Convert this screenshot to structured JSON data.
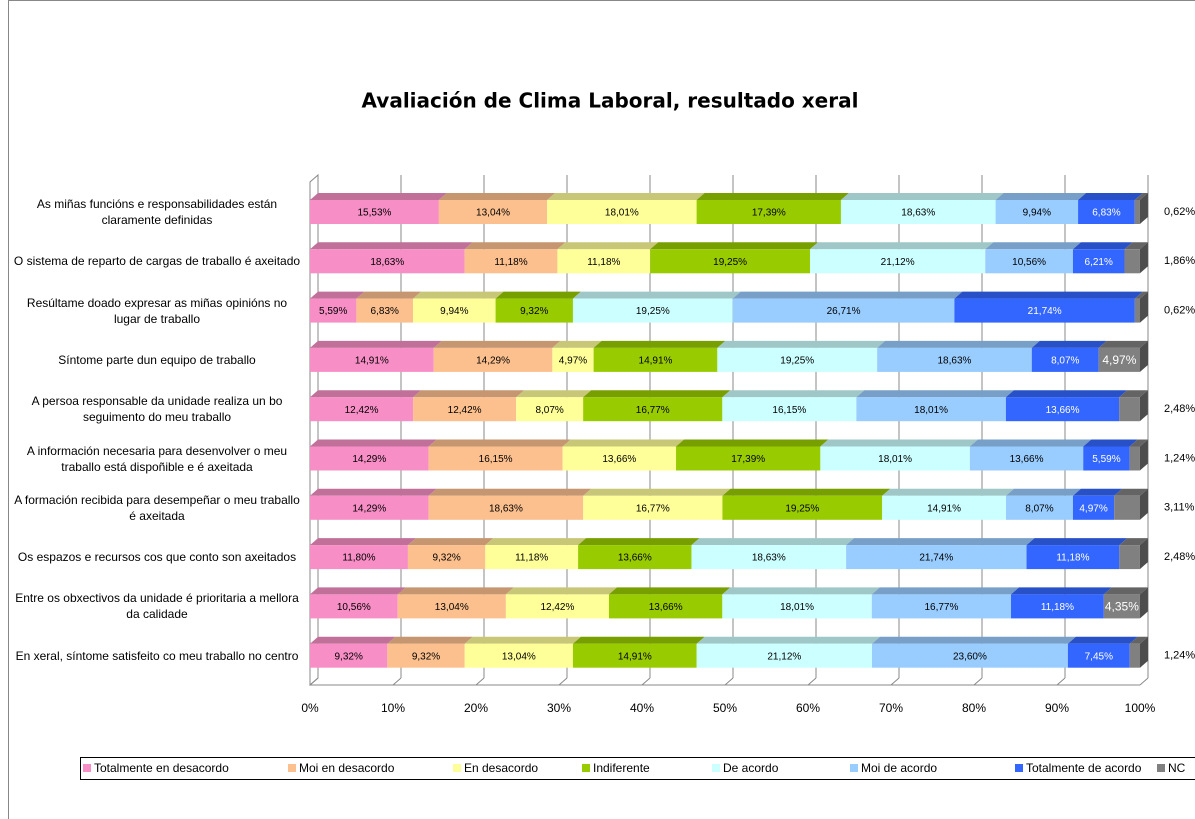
{
  "chart_data": {
    "type": "stacked_barh_100",
    "title": "Avaliación de Clima Laboral, resultado xeral",
    "categories": [
      "As miñas funcións e responsabilidades están claramente definidas",
      "O sistema de reparto de cargas de traballo é axeitado",
      "Resúltame doado expresar as miñas opinións no lugar de traballo",
      "Síntome parte dun equipo de traballo",
      "A persoa responsable da unidade realiza un bo seguimento do meu traballo",
      "A información necesaria para desenvolver o meu traballo está dispoñible e é axeitada",
      "A formación recibida para desempeñar o meu traballo é axeitada",
      "Os espazos e recursos cos que conto son axeitados",
      "Entre os obxectivos da unidade é prioritaria a mellora da calidade",
      "En xeral, síntome satisfeito co meu traballo no centro"
    ],
    "series": [
      {
        "name": "Totalmente en desacordo",
        "color": "#f78fc6",
        "values": [
          15.53,
          18.63,
          5.59,
          14.91,
          12.42,
          14.29,
          14.29,
          11.8,
          10.56,
          9.32
        ],
        "value_labels": [
          "15,53%",
          "18,63%",
          "5,59%",
          "14,91%",
          "12,42%",
          "14,29%",
          "14,29%",
          "11,80%",
          "10,56%",
          "9,32%"
        ]
      },
      {
        "name": "Moi en desacordo",
        "color": "#fcc08e",
        "values": [
          13.04,
          11.18,
          6.83,
          14.29,
          12.42,
          16.15,
          18.63,
          9.32,
          13.04,
          9.32
        ],
        "value_labels": [
          "13,04%",
          "11,18%",
          "6,83%",
          "14,29%",
          "12,42%",
          "16,15%",
          "18,63%",
          "9,32%",
          "13,04%",
          "9,32%"
        ]
      },
      {
        "name": "En desacordo",
        "color": "#ffff99",
        "values": [
          18.01,
          11.18,
          9.94,
          4.97,
          8.07,
          13.66,
          16.77,
          11.18,
          12.42,
          13.04
        ],
        "value_labels": [
          "18,01%",
          "11,18%",
          "9,94%",
          "4,97%",
          "8,07%",
          "13,66%",
          "16,77%",
          "11,18%",
          "12,42%",
          "13,04%"
        ]
      },
      {
        "name": "Indiferente",
        "color": "#99cc00",
        "values": [
          17.39,
          19.25,
          9.32,
          14.91,
          16.77,
          17.39,
          19.25,
          13.66,
          13.66,
          14.91
        ],
        "value_labels": [
          "17,39%",
          "19,25%",
          "9,32%",
          "14,91%",
          "16,77%",
          "17,39%",
          "19,25%",
          "13,66%",
          "13,66%",
          "14,91%"
        ]
      },
      {
        "name": "De acordo",
        "color": "#ccffff",
        "values": [
          18.63,
          21.12,
          19.25,
          19.25,
          16.15,
          18.01,
          14.91,
          18.63,
          18.01,
          21.12
        ],
        "value_labels": [
          "18,63%",
          "21,12%",
          "19,25%",
          "19,25%",
          "16,15%",
          "18,01%",
          "14,91%",
          "18,63%",
          "18,01%",
          "21,12%"
        ]
      },
      {
        "name": "Moi de acordo",
        "color": "#99ccff",
        "values": [
          9.94,
          10.56,
          26.71,
          18.63,
          18.01,
          13.66,
          8.07,
          21.74,
          16.77,
          23.6
        ],
        "value_labels": [
          "9,94%",
          "10,56%",
          "26,71%",
          "18,63%",
          "18,01%",
          "13,66%",
          "8,07%",
          "21,74%",
          "16,77%",
          "23,60%"
        ]
      },
      {
        "name": "Totalmente de acordo",
        "color": "#3366ff",
        "values": [
          6.83,
          6.21,
          21.74,
          8.07,
          13.66,
          5.59,
          4.97,
          11.18,
          11.18,
          7.45
        ],
        "value_labels": [
          "6,83%",
          "6,21%",
          "21,74%",
          "8,07%",
          "13,66%",
          "5,59%",
          "4,97%",
          "11,18%",
          "11,18%",
          "7,45%"
        ]
      },
      {
        "name": "NC",
        "color": "#808080",
        "values": [
          0.62,
          1.86,
          0.62,
          4.97,
          2.48,
          1.24,
          3.11,
          2.48,
          4.35,
          1.24
        ],
        "value_labels": [
          "0,62%",
          "1,86%",
          "0,62%",
          "4,97%",
          "2,48%",
          "1,24%",
          "3,11%",
          "2,48%",
          "4,35%",
          "1,24%"
        ]
      }
    ],
    "xlim": [
      0,
      100
    ],
    "xticks": [
      {
        "value": 0,
        "label": "0%"
      },
      {
        "value": 10,
        "label": "10%"
      },
      {
        "value": 20,
        "label": "20%"
      },
      {
        "value": 30,
        "label": "30%"
      },
      {
        "value": 40,
        "label": "40%"
      },
      {
        "value": 50,
        "label": "50%"
      },
      {
        "value": 60,
        "label": "60%"
      },
      {
        "value": 70,
        "label": "70%"
      },
      {
        "value": 80,
        "label": "80%"
      },
      {
        "value": 90,
        "label": "90%"
      },
      {
        "value": 100,
        "label": "100%"
      }
    ],
    "grid": true,
    "legend": "bottom"
  }
}
